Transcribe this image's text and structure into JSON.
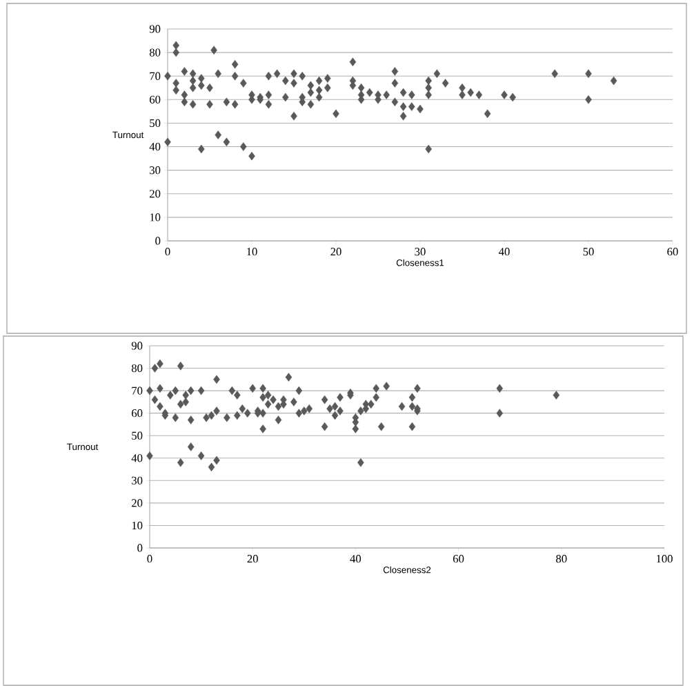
{
  "chart_data": [
    {
      "type": "scatter",
      "xlabel": "Closeness1",
      "ylabel": "Turnout",
      "color": "#595959",
      "marker": "diamond",
      "grid": "y",
      "xlim": [
        0,
        60
      ],
      "ylim": [
        0,
        90
      ],
      "xticks": [
        0,
        10,
        20,
        30,
        40,
        50,
        60
      ],
      "yticks": [
        0,
        10,
        20,
        30,
        40,
        50,
        60,
        70,
        80,
        90
      ],
      "x": [
        0,
        0,
        1,
        1,
        1,
        1,
        2,
        2,
        2,
        3,
        3,
        3,
        3,
        4,
        4,
        4,
        5,
        5,
        5.5,
        6,
        6,
        7,
        7,
        8,
        8,
        8,
        9,
        9,
        10,
        10,
        10,
        11,
        11,
        12,
        12,
        12,
        13,
        14,
        14,
        15,
        15,
        15,
        16,
        16,
        16,
        17,
        17,
        17,
        18,
        18,
        18,
        19,
        19,
        20,
        22,
        22,
        22,
        23,
        23,
        23,
        24,
        25,
        25,
        26,
        27,
        27,
        27,
        28,
        28,
        28,
        29,
        29,
        30,
        31,
        31,
        31,
        31,
        32,
        33,
        35,
        35,
        36,
        37,
        38,
        40,
        41,
        46,
        50,
        50,
        53
      ],
      "values": [
        70,
        42,
        83,
        80,
        67,
        64,
        72,
        62,
        59,
        71,
        68,
        65,
        58,
        66,
        69,
        39,
        65,
        58,
        81,
        71,
        45,
        59,
        42,
        75,
        70,
        58,
        67,
        40,
        62,
        60,
        36,
        61,
        60,
        70,
        62,
        58,
        71,
        68,
        61,
        71,
        67,
        53,
        70,
        61,
        59,
        66,
        63,
        58,
        68,
        64,
        61,
        69,
        65,
        54,
        76,
        68,
        66,
        65,
        62,
        60,
        63,
        62,
        60,
        62,
        72,
        67,
        59,
        63,
        57,
        53,
        62,
        57,
        56,
        68,
        65,
        62,
        39,
        71,
        67,
        65,
        62,
        63,
        62,
        54,
        62,
        61,
        71,
        71,
        60,
        68
      ]
    },
    {
      "type": "scatter",
      "xlabel": "Closeness2",
      "ylabel": "Turnout",
      "color": "#595959",
      "marker": "diamond",
      "grid": "y",
      "xlim": [
        0,
        100
      ],
      "ylim": [
        0,
        90
      ],
      "xticks": [
        0,
        20,
        40,
        60,
        80,
        100
      ],
      "yticks": [
        0,
        10,
        20,
        30,
        40,
        50,
        60,
        70,
        80,
        90
      ],
      "x": [
        0,
        0,
        1,
        1,
        2,
        2,
        2,
        3,
        3,
        4,
        5,
        5,
        6,
        6,
        6,
        7,
        7,
        8,
        8,
        8,
        10,
        10,
        11,
        12,
        13,
        13,
        13,
        12,
        15,
        16,
        17,
        17,
        18,
        19,
        20,
        21,
        21,
        22,
        22,
        22,
        22,
        23,
        23,
        24,
        25,
        25,
        26,
        26,
        27,
        28,
        29,
        29,
        30,
        31,
        34,
        34,
        35,
        36,
        36,
        37,
        37,
        39,
        39,
        40,
        40,
        40,
        41,
        41,
        42,
        42,
        43,
        44,
        44,
        45,
        46,
        49,
        51,
        51,
        51,
        52,
        52,
        52,
        68,
        68,
        79
      ],
      "values": [
        70,
        41,
        80,
        66,
        82,
        63,
        71,
        60,
        59,
        68,
        70,
        58,
        64,
        38,
        81,
        65,
        68,
        57,
        45,
        70,
        70,
        41,
        58,
        59,
        75,
        61,
        39,
        36,
        58,
        70,
        59,
        68,
        62,
        60,
        71,
        61,
        60,
        67,
        71,
        53,
        60,
        68,
        64,
        66,
        57,
        63,
        64,
        66,
        76,
        65,
        60,
        70,
        61,
        62,
        66,
        54,
        62,
        63,
        59,
        67,
        61,
        69,
        68,
        53,
        56,
        58,
        61,
        38,
        64,
        62,
        64,
        67,
        71,
        54,
        72,
        63,
        67,
        63,
        54,
        61,
        62,
        71,
        71,
        60,
        68
      ]
    }
  ]
}
